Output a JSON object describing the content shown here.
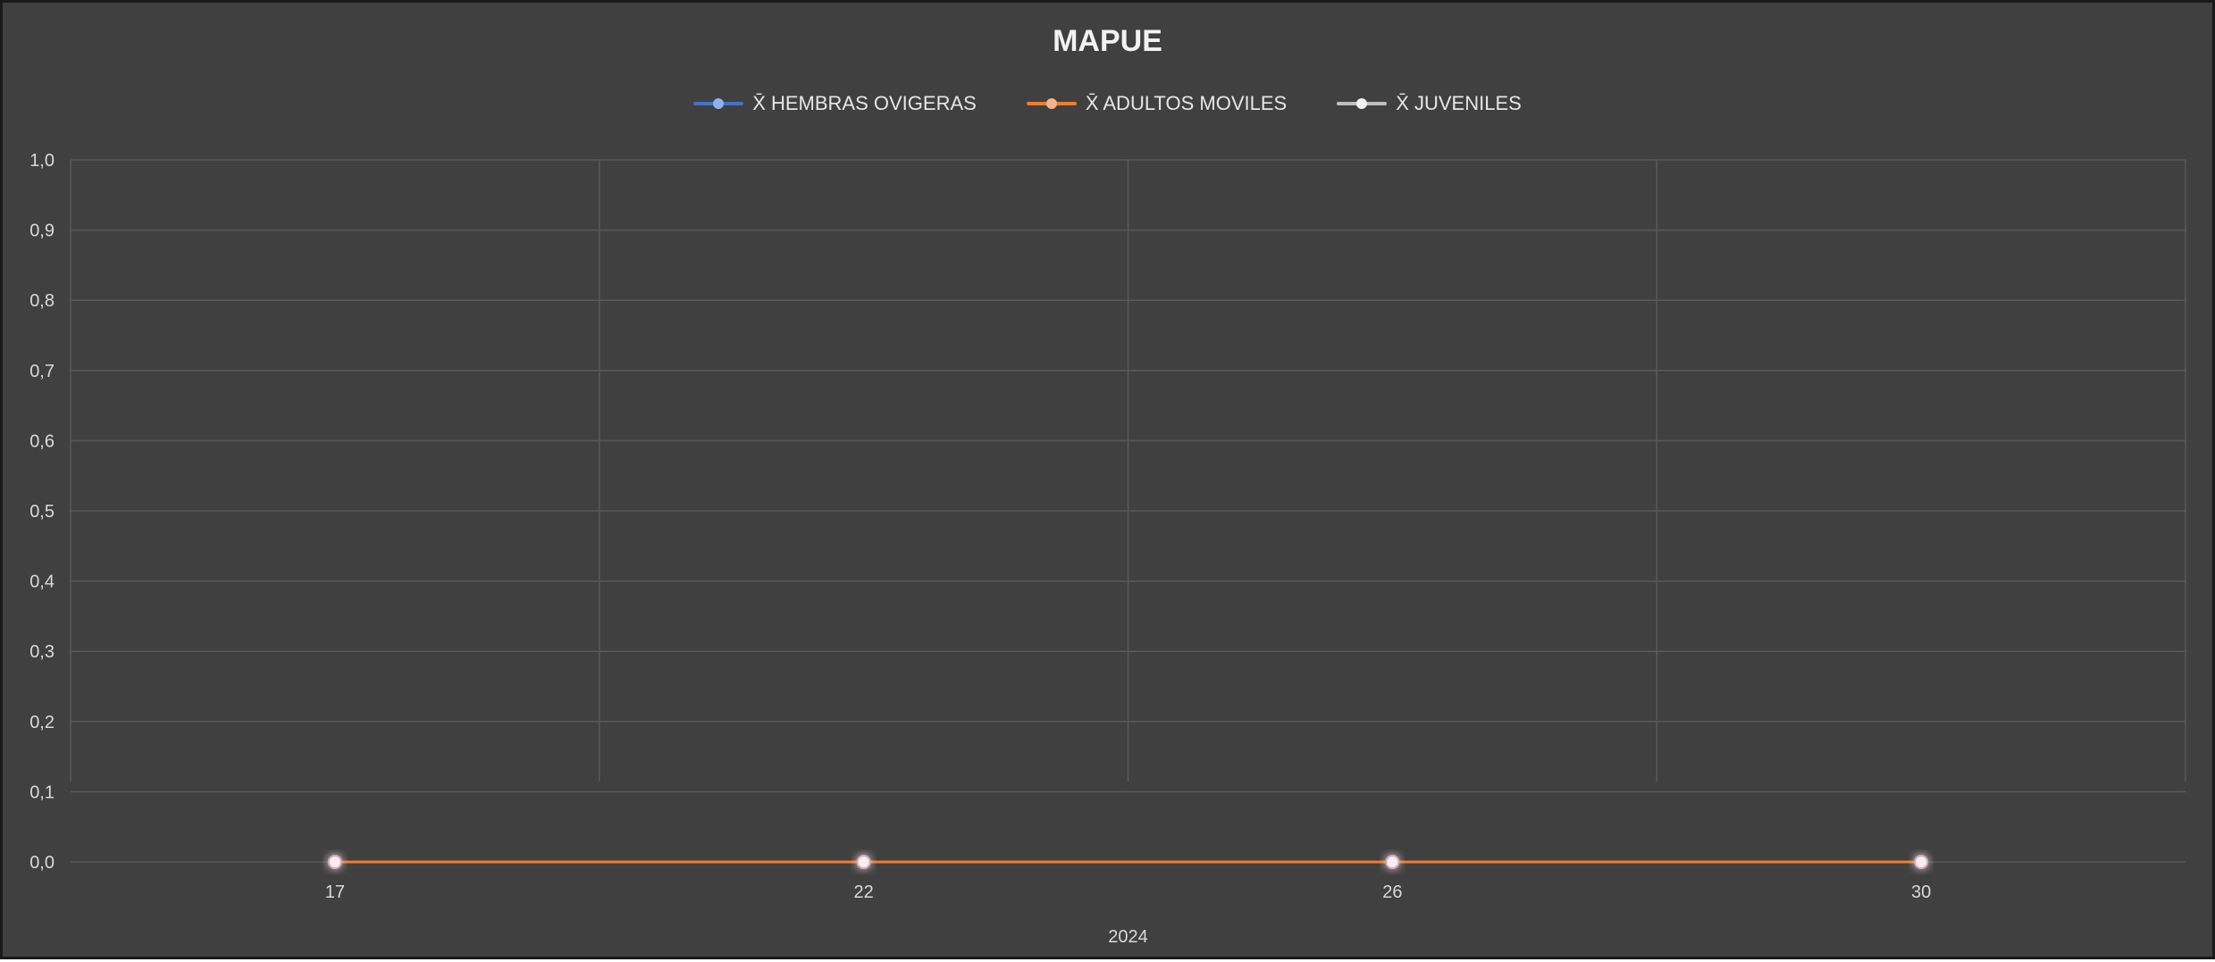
{
  "chart_data": {
    "type": "line",
    "title": "MAPUE",
    "xlabel": "2024",
    "ylabel": "",
    "categories": [
      "17",
      "22",
      "26",
      "30"
    ],
    "ylim": [
      0,
      1
    ],
    "yticks": [
      "0,0",
      "0,1",
      "0,2",
      "0,3",
      "0,4",
      "0,5",
      "0,6",
      "0,7",
      "0,8",
      "0,9",
      "1,0"
    ],
    "grid": true,
    "legend_position": "top",
    "series": [
      {
        "name": "X̄ HEMBRAS OVIGERAS",
        "color": "#4472c4",
        "values": [
          0,
          0,
          0,
          0
        ]
      },
      {
        "name": "X̄ ADULTOS MOVILES",
        "color": "#ed7d31",
        "values": [
          0,
          0,
          0,
          0
        ]
      },
      {
        "name": "X̄ JUVENILES",
        "color": "#d9d9d9",
        "values": [
          0,
          0,
          0,
          0
        ]
      }
    ]
  },
  "colors": {
    "background": "#404040",
    "grid": "#595959",
    "text": "#d9d9d9"
  }
}
